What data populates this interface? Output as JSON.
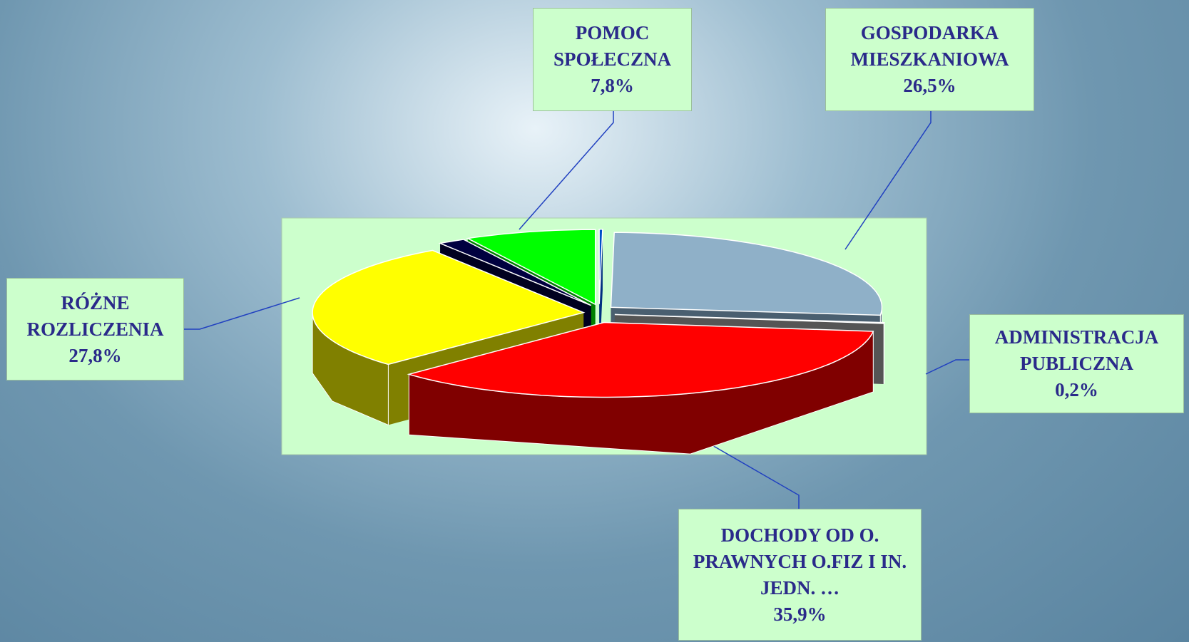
{
  "chart_data": {
    "type": "pie3d",
    "categories": [
      null,
      "GOSPODARKA MIESZKANIOWA",
      "ADMINISTRACJA PUBLICZNA",
      "DOCHODY OD O. PRAWNYCH O.FIZ I IN. JEDN. …",
      "RÓŻNE ROZLICZENIA",
      null,
      "POMOC SPOŁECZNA"
    ],
    "values": [
      0.2,
      26.5,
      0.2,
      35.9,
      27.8,
      1.6,
      7.8
    ],
    "value_labels": [
      null,
      "26,5%",
      "0,2%",
      "35,9%",
      "27,8%",
      null,
      "7,8%"
    ],
    "colors": [
      "#0050c8",
      "#8fb0c8",
      "#808080",
      "#ff0000",
      "#ffff00",
      "#000040",
      "#00ff00"
    ],
    "side_colors": [
      "#003080",
      "#4a5f70",
      "#555555",
      "#800000",
      "#808000",
      "#000020",
      "#008000"
    ]
  }
}
